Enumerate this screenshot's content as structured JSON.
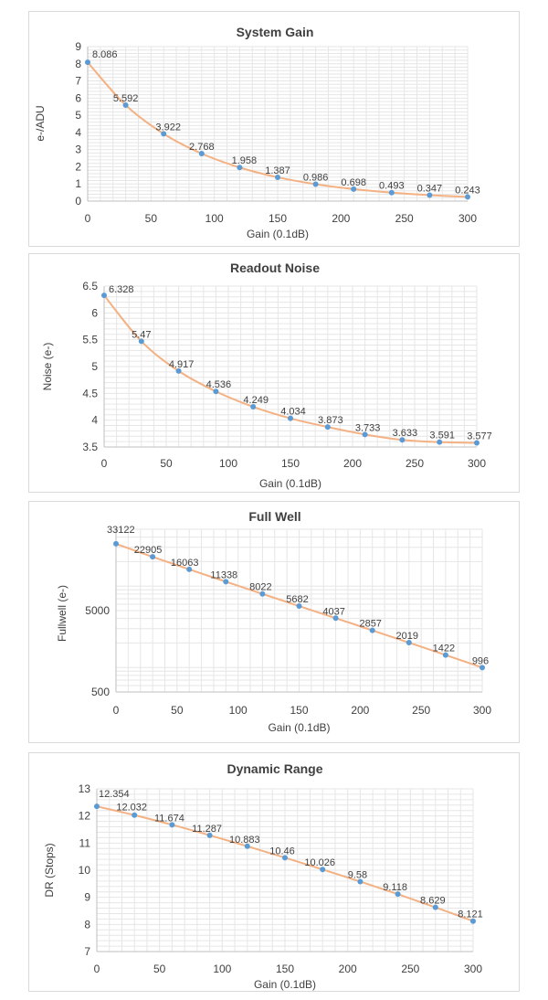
{
  "colors": {
    "line": "#f4b183",
    "marker": "#5b9bd5",
    "grid": "#e6e6e6",
    "axis": "#bfbfbf",
    "text": "#404040"
  },
  "chart_data": [
    {
      "type": "line",
      "title": "System Gain",
      "xlabel": "Gain (0.1dB)",
      "ylabel": "e-/ADU",
      "x": [
        0,
        30,
        60,
        90,
        120,
        150,
        180,
        210,
        240,
        270,
        300
      ],
      "series": [
        {
          "values": [
            8.086,
            5.592,
            3.922,
            2.768,
            1.958,
            1.387,
            0.986,
            0.698,
            0.493,
            0.347,
            0.243
          ]
        }
      ],
      "data_labels": [
        "8.086",
        "5.592",
        "3.922",
        "2.768",
        "1.958",
        "1.387",
        "0.986",
        "0.698",
        "0.493",
        "0.347",
        "0.243"
      ],
      "xlim": [
        0,
        300
      ],
      "ylim": [
        0,
        9
      ],
      "x_ticks": [
        0,
        50,
        100,
        150,
        200,
        250,
        300
      ],
      "x_tick_labels": [
        "0",
        "50",
        "100",
        "150",
        "200",
        "250",
        "300"
      ],
      "y_ticks": [
        0,
        1,
        2,
        3,
        4,
        5,
        6,
        7,
        8,
        9
      ],
      "y_tick_labels": [
        "0",
        "1",
        "2",
        "3",
        "4",
        "5",
        "6",
        "7",
        "8",
        "9"
      ],
      "y_scale": "linear",
      "grid": true,
      "legend": "none"
    },
    {
      "type": "line",
      "title": "Readout Noise",
      "xlabel": "Gain (0.1dB)",
      "ylabel": "Noise (e-)",
      "x": [
        0,
        30,
        60,
        90,
        120,
        150,
        180,
        210,
        240,
        270,
        300
      ],
      "series": [
        {
          "values": [
            6.328,
            5.47,
            4.917,
            4.536,
            4.249,
            4.034,
            3.873,
            3.733,
            3.633,
            3.591,
            3.577
          ]
        }
      ],
      "data_labels": [
        "6.328",
        "5.47",
        "4.917",
        "4.536",
        "4.249",
        "4.034",
        "3.873",
        "3.733",
        "3.633",
        "3.591",
        "3.577"
      ],
      "xlim": [
        0,
        300
      ],
      "ylim": [
        3.5,
        6.5
      ],
      "x_ticks": [
        0,
        50,
        100,
        150,
        200,
        250,
        300
      ],
      "x_tick_labels": [
        "0",
        "50",
        "100",
        "150",
        "200",
        "250",
        "300"
      ],
      "y_ticks": [
        3.5,
        4,
        4.5,
        5,
        5.5,
        6,
        6.5
      ],
      "y_tick_labels": [
        "3.5",
        "4",
        "4.5",
        "5",
        "5.5",
        "6",
        "6.5"
      ],
      "y_scale": "linear",
      "grid": true,
      "legend": "none"
    },
    {
      "type": "line",
      "title": "Full Well",
      "xlabel": "Gain (0.1dB)",
      "ylabel": "Fullwell (e-)",
      "x": [
        0,
        30,
        60,
        90,
        120,
        150,
        180,
        210,
        240,
        270,
        300
      ],
      "series": [
        {
          "values": [
            33122,
            22905,
            16063,
            11338,
            8022,
            5682,
            4037,
            2857,
            2019,
            1422,
            996
          ]
        }
      ],
      "data_labels": [
        "33122",
        "22905",
        "16063",
        "11338",
        "8022",
        "5682",
        "4037",
        "2857",
        "2019",
        "1422",
        "996"
      ],
      "xlim": [
        0,
        300
      ],
      "ylim": [
        500,
        50000
      ],
      "x_ticks": [
        0,
        50,
        100,
        150,
        200,
        250,
        300
      ],
      "x_tick_labels": [
        "0",
        "50",
        "100",
        "150",
        "200",
        "250",
        "300"
      ],
      "y_ticks": [
        500,
        5000
      ],
      "y_tick_labels": [
        "500",
        "5000"
      ],
      "y_scale": "log",
      "grid": true,
      "legend": "none"
    },
    {
      "type": "line",
      "title": "Dynamic Range",
      "xlabel": "Gain (0.1dB)",
      "ylabel": "DR (Stops)",
      "x": [
        0,
        30,
        60,
        90,
        120,
        150,
        180,
        210,
        240,
        270,
        300
      ],
      "series": [
        {
          "values": [
            12.354,
            12.032,
            11.674,
            11.287,
            10.883,
            10.46,
            10.026,
            9.58,
            9.118,
            8.629,
            8.121
          ]
        }
      ],
      "data_labels": [
        "12.354",
        "12.032",
        "11.674",
        "11.287",
        "10.883",
        "10.46",
        "10.026",
        "9.58",
        "9.118",
        "8.629",
        "8.121"
      ],
      "xlim": [
        0,
        300
      ],
      "ylim": [
        7,
        13
      ],
      "x_ticks": [
        0,
        50,
        100,
        150,
        200,
        250,
        300
      ],
      "x_tick_labels": [
        "0",
        "50",
        "100",
        "150",
        "200",
        "250",
        "300"
      ],
      "y_ticks": [
        7,
        8,
        9,
        10,
        11,
        12,
        13
      ],
      "y_tick_labels": [
        "7",
        "8",
        "9",
        "10",
        "11",
        "12",
        "13"
      ],
      "y_scale": "linear",
      "grid": true,
      "legend": "none"
    }
  ]
}
